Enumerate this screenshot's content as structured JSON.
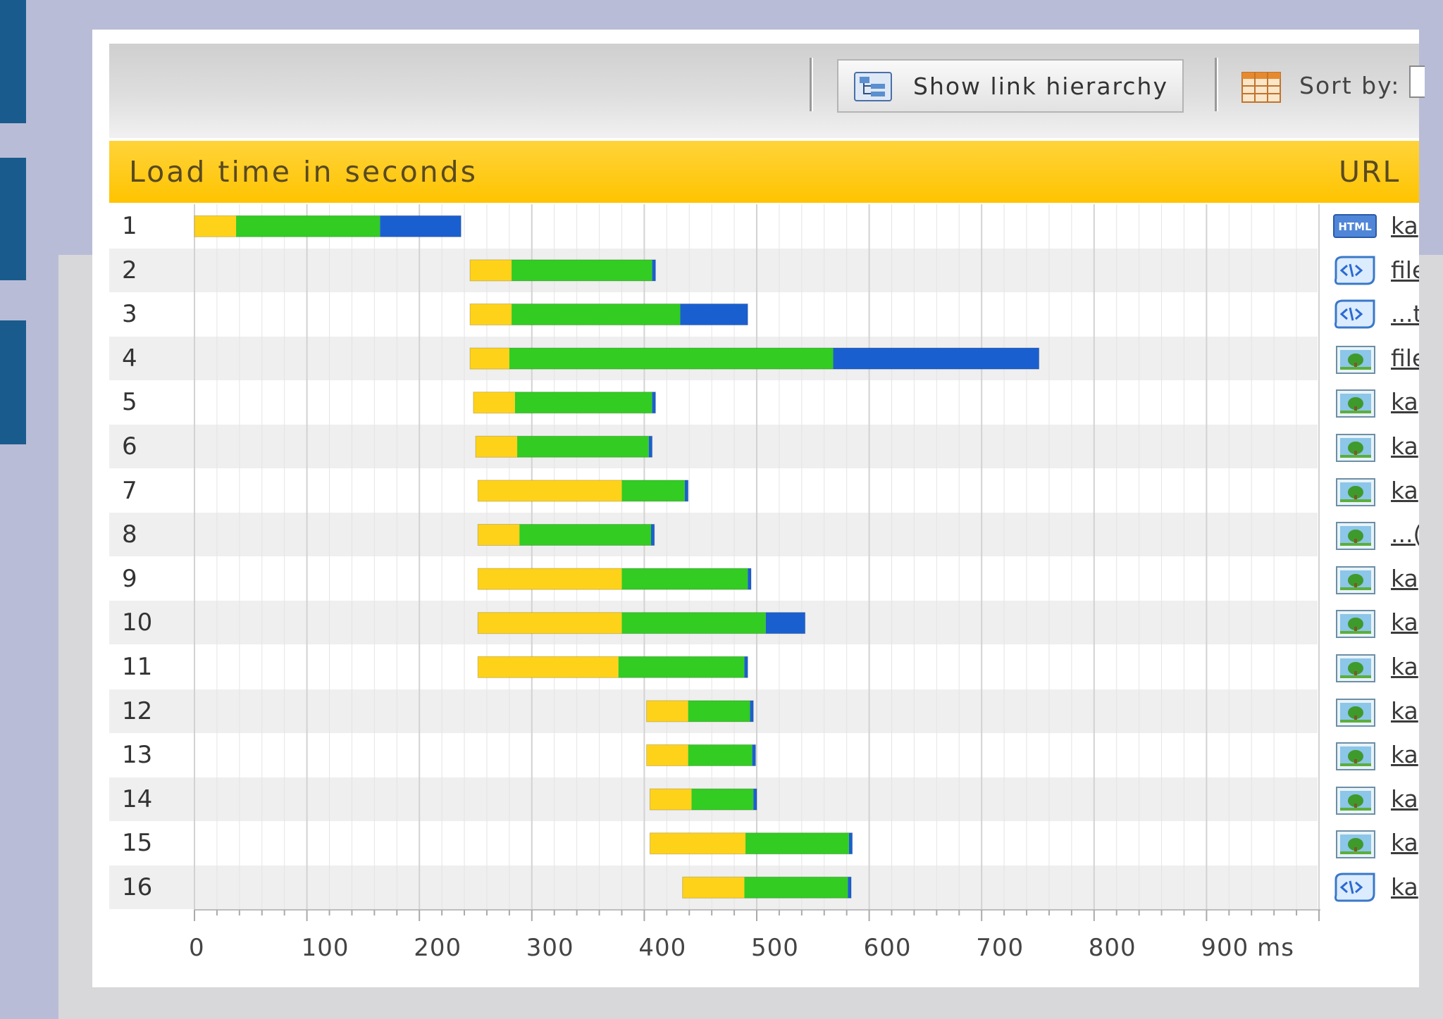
{
  "toolbar": {
    "show_hierarchy_label": "Show link hierarchy",
    "sort_label": "Sort by:"
  },
  "header": {
    "left": "Load time in seconds",
    "right": "URL"
  },
  "colors": {
    "phase1": "#ffd21a",
    "phase2": "#33cc22",
    "phase3": "#1a5fd0",
    "header": "#ffc800",
    "slide_strip": "#1a5b8e"
  },
  "rows": [
    {
      "label": "1",
      "icon": "html-icon",
      "url": "ka"
    },
    {
      "label": "2",
      "icon": "script-icon",
      "url": "file"
    },
    {
      "label": "3",
      "icon": "script-icon",
      "url": "...t"
    },
    {
      "label": "4",
      "icon": "image-icon",
      "url": "file"
    },
    {
      "label": "5",
      "icon": "image-icon",
      "url": "ka"
    },
    {
      "label": "6",
      "icon": "image-icon",
      "url": "ka"
    },
    {
      "label": "7",
      "icon": "image-icon",
      "url": "ka"
    },
    {
      "label": "8",
      "icon": "image-icon",
      "url": "...("
    },
    {
      "label": "9",
      "icon": "image-icon",
      "url": "ka"
    },
    {
      "label": "10",
      "icon": "image-icon",
      "url": "ka"
    },
    {
      "label": "11",
      "icon": "image-icon",
      "url": "ka"
    },
    {
      "label": "12",
      "icon": "image-icon",
      "url": "ka"
    },
    {
      "label": "13",
      "icon": "image-icon",
      "url": "ka"
    },
    {
      "label": "14",
      "icon": "image-icon",
      "url": "ka"
    },
    {
      "label": "15",
      "icon": "image-icon",
      "url": "ka"
    },
    {
      "label": "16",
      "icon": "script-icon",
      "url": "ka"
    }
  ],
  "chart_data": {
    "type": "bar",
    "orientation": "horizontal-stacked",
    "unit": "ms",
    "xlim": [
      0,
      1000
    ],
    "x_ticks": [
      "0",
      "100",
      "200",
      "300",
      "400",
      "500",
      "600",
      "700",
      "800",
      "900 ms"
    ],
    "categories": [
      "1",
      "2",
      "3",
      "4",
      "5",
      "6",
      "7",
      "8",
      "9",
      "10",
      "11",
      "12",
      "13",
      "14",
      "15",
      "16"
    ],
    "start": [
      0,
      245,
      245,
      245,
      248,
      250,
      252,
      252,
      252,
      252,
      252,
      402,
      402,
      405,
      405,
      434
    ],
    "segments": [
      [
        37,
        128,
        72
      ],
      [
        37,
        125,
        3
      ],
      [
        37,
        150,
        60
      ],
      [
        35,
        288,
        183
      ],
      [
        37,
        122,
        3
      ],
      [
        37,
        117,
        3
      ],
      [
        128,
        56,
        3
      ],
      [
        37,
        117,
        3
      ],
      [
        128,
        112,
        3
      ],
      [
        128,
        128,
        35
      ],
      [
        125,
        112,
        3
      ],
      [
        37,
        55,
        3
      ],
      [
        37,
        57,
        3
      ],
      [
        37,
        55,
        3
      ],
      [
        85,
        92,
        3
      ],
      [
        55,
        92,
        3
      ]
    ]
  }
}
